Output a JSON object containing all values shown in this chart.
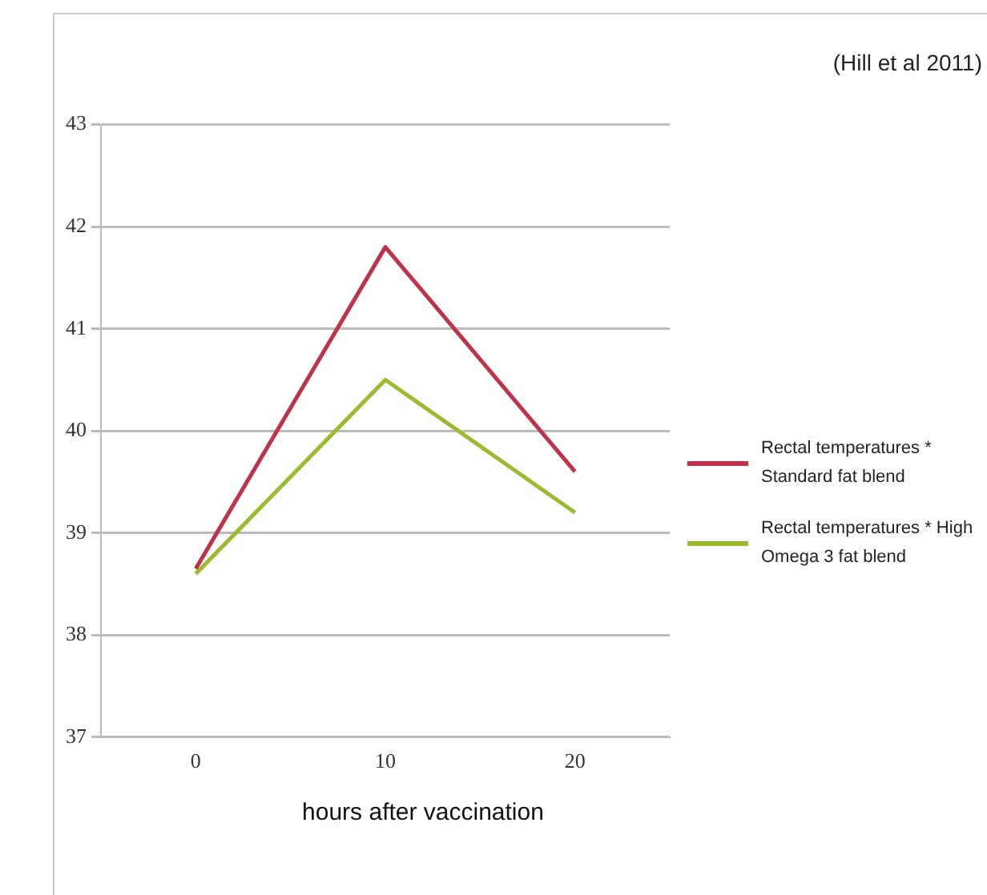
{
  "chart_data": {
    "type": "line",
    "xlabel": "hours after vaccination",
    "annotations": [
      "(Hill et al 2011)"
    ],
    "categories": [
      "0",
      "10",
      "20"
    ],
    "series": [
      {
        "name": "Rectal temperatures * Standard fat blend",
        "color": "#c0314a",
        "values": [
          38.65,
          41.8,
          39.6
        ]
      },
      {
        "name": "Rectal temperatures * High Omega 3 fat blend",
        "color": "#9bbb2e",
        "values": [
          38.6,
          40.5,
          39.2
        ]
      }
    ],
    "ylim": [
      37,
      43
    ],
    "yticks": [
      37,
      38,
      39,
      40,
      41,
      42,
      43
    ],
    "grid": "y",
    "legend": "right",
    "marker": "none",
    "line_style": "solid"
  }
}
